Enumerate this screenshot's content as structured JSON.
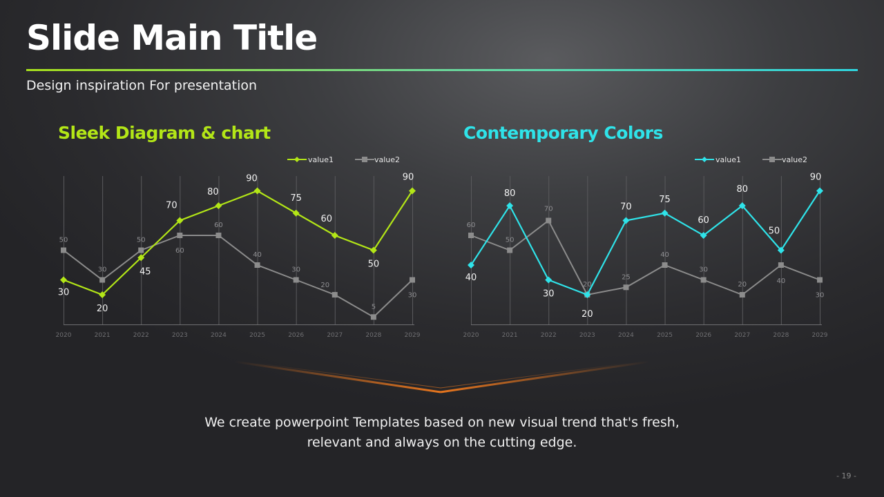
{
  "slide": {
    "title": "Slide Main Title",
    "subtitle": "Design inspiration For presentation",
    "footer_line1": "We create powerpoint Templates based on new visual trend that's fresh,",
    "footer_line2": "relevant and always on the cutting edge.",
    "page_number": "- 19 -"
  },
  "colors": {
    "lime": "#b3e617",
    "cyan": "#2fe3e9",
    "gray_series": "#8c8c8c",
    "accent_orange": "#e8761e"
  },
  "chart_data": [
    {
      "type": "line",
      "title": "Sleek Diagram & chart",
      "categories": [
        "2020",
        "2021",
        "2022",
        "2023",
        "2024",
        "2025",
        "2026",
        "2027",
        "2028",
        "2029"
      ],
      "series": [
        {
          "name": "value1",
          "values": [
            30,
            20,
            45,
            70,
            80,
            90,
            75,
            60,
            50,
            90
          ],
          "color": "#b3e617",
          "marker": "diamond"
        },
        {
          "name": "value2",
          "values": [
            50,
            30,
            50,
            60,
            60,
            40,
            30,
            20,
            5,
            30
          ],
          "color": "#8c8c8c",
          "marker": "square"
        }
      ],
      "legend": "top-right",
      "grid": "vertical"
    },
    {
      "type": "line",
      "title": "Contemporary Colors",
      "categories": [
        "2020",
        "2021",
        "2022",
        "2023",
        "2024",
        "2025",
        "2026",
        "2027",
        "2028",
        "2029"
      ],
      "series": [
        {
          "name": "value1",
          "values": [
            40,
            80,
            30,
            20,
            70,
            75,
            60,
            80,
            50,
            90
          ],
          "color": "#2fe3e9",
          "marker": "diamond"
        },
        {
          "name": "value2",
          "values": [
            60,
            50,
            70,
            20,
            25,
            40,
            30,
            20,
            40,
            30
          ],
          "color": "#8c8c8c",
          "marker": "square"
        }
      ],
      "legend": "top-right",
      "grid": "vertical"
    }
  ]
}
